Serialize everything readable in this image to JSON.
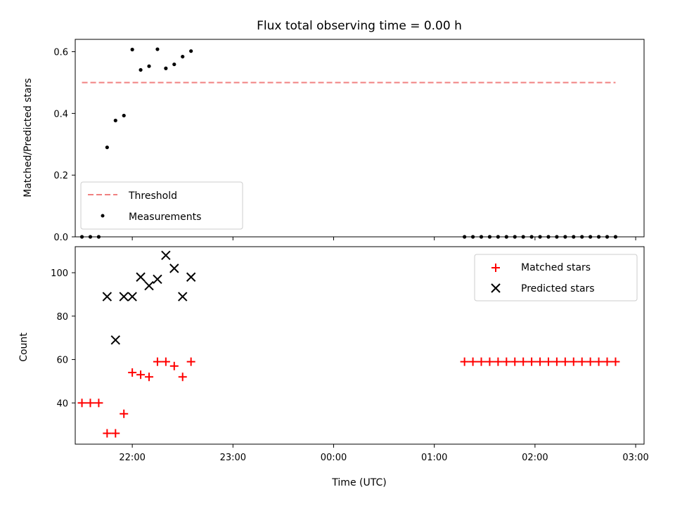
{
  "chart_data": [
    {
      "type": "scatter",
      "title": "Flux total observing time = 0.00 h",
      "xlabel": "",
      "ylabel": "Matched/Predicted stars",
      "ylim": [
        0,
        0.64
      ],
      "yticks": [
        "0.0",
        "0.2",
        "0.4",
        "0.6"
      ],
      "ytick_values": [
        0,
        0.2,
        0.4,
        0.6
      ],
      "xlim": [
        "21:26",
        "03:05"
      ],
      "threshold": {
        "name": "Threshold",
        "value": 0.5,
        "x_start": "21:30",
        "x_end": "02:48",
        "color": "#f08080"
      },
      "legend": {
        "location": "lower-left",
        "entries": [
          "Threshold",
          "Measurements"
        ]
      },
      "series": [
        {
          "name": "Measurements",
          "color": "#000000",
          "points": [
            [
              "21:30",
              0.0
            ],
            [
              "21:35",
              0.0
            ],
            [
              "21:40",
              0.0
            ],
            [
              "21:45",
              0.29
            ],
            [
              "21:50",
              0.377
            ],
            [
              "21:55",
              0.393
            ],
            [
              "22:00",
              0.607
            ],
            [
              "22:05",
              0.541
            ],
            [
              "22:10",
              0.553
            ],
            [
              "22:15",
              0.608
            ],
            [
              "22:20",
              0.546
            ],
            [
              "22:25",
              0.559
            ],
            [
              "22:30",
              0.584
            ],
            [
              "22:35",
              0.602
            ],
            [
              "01:18",
              0.0
            ],
            [
              "01:23",
              0.0
            ],
            [
              "01:28",
              0.0
            ],
            [
              "01:33",
              0.0
            ],
            [
              "01:38",
              0.0
            ],
            [
              "01:43",
              0.0
            ],
            [
              "01:48",
              0.0
            ],
            [
              "01:53",
              0.0
            ],
            [
              "01:58",
              0.0
            ],
            [
              "02:03",
              0.0
            ],
            [
              "02:08",
              0.0
            ],
            [
              "02:13",
              0.0
            ],
            [
              "02:18",
              0.0
            ],
            [
              "02:23",
              0.0
            ],
            [
              "02:28",
              0.0
            ],
            [
              "02:33",
              0.0
            ],
            [
              "02:38",
              0.0
            ],
            [
              "02:43",
              0.0
            ],
            [
              "02:48",
              0.0
            ]
          ]
        }
      ]
    },
    {
      "type": "scatter",
      "title": "",
      "xlabel": "Time (UTC)",
      "ylabel": "Count",
      "ylim": [
        21,
        112
      ],
      "yticks": [
        "40",
        "60",
        "80",
        "100"
      ],
      "ytick_values": [
        40,
        60,
        80,
        100
      ],
      "xlim": [
        "21:26",
        "03:05"
      ],
      "xticks": [
        "22:00",
        "23:00",
        "00:00",
        "01:00",
        "02:00",
        "03:00"
      ],
      "legend": {
        "location": "upper-right",
        "entries": [
          "Matched stars",
          "Predicted stars"
        ]
      },
      "series": [
        {
          "name": "Matched stars",
          "marker": "plus",
          "color": "#ff0000",
          "points": [
            [
              "21:30",
              40
            ],
            [
              "21:35",
              40
            ],
            [
              "21:40",
              40
            ],
            [
              "21:45",
              26
            ],
            [
              "21:50",
              26
            ],
            [
              "21:55",
              35
            ],
            [
              "22:00",
              54
            ],
            [
              "22:05",
              53
            ],
            [
              "22:10",
              52
            ],
            [
              "22:15",
              59
            ],
            [
              "22:20",
              59
            ],
            [
              "22:25",
              57
            ],
            [
              "22:30",
              52
            ],
            [
              "22:35",
              59
            ],
            [
              "01:18",
              59
            ],
            [
              "01:23",
              59
            ],
            [
              "01:28",
              59
            ],
            [
              "01:33",
              59
            ],
            [
              "01:38",
              59
            ],
            [
              "01:43",
              59
            ],
            [
              "01:48",
              59
            ],
            [
              "01:53",
              59
            ],
            [
              "01:58",
              59
            ],
            [
              "02:03",
              59
            ],
            [
              "02:08",
              59
            ],
            [
              "02:13",
              59
            ],
            [
              "02:18",
              59
            ],
            [
              "02:23",
              59
            ],
            [
              "02:28",
              59
            ],
            [
              "02:33",
              59
            ],
            [
              "02:38",
              59
            ],
            [
              "02:43",
              59
            ],
            [
              "02:48",
              59
            ]
          ]
        },
        {
          "name": "Predicted stars",
          "marker": "x",
          "color": "#000000",
          "points": [
            [
              "21:45",
              89
            ],
            [
              "21:50",
              69
            ],
            [
              "21:55",
              89
            ],
            [
              "22:00",
              89
            ],
            [
              "22:05",
              98
            ],
            [
              "22:10",
              94
            ],
            [
              "22:15",
              97
            ],
            [
              "22:20",
              108
            ],
            [
              "22:25",
              102
            ],
            [
              "22:30",
              89
            ],
            [
              "22:35",
              98
            ]
          ]
        }
      ]
    }
  ]
}
